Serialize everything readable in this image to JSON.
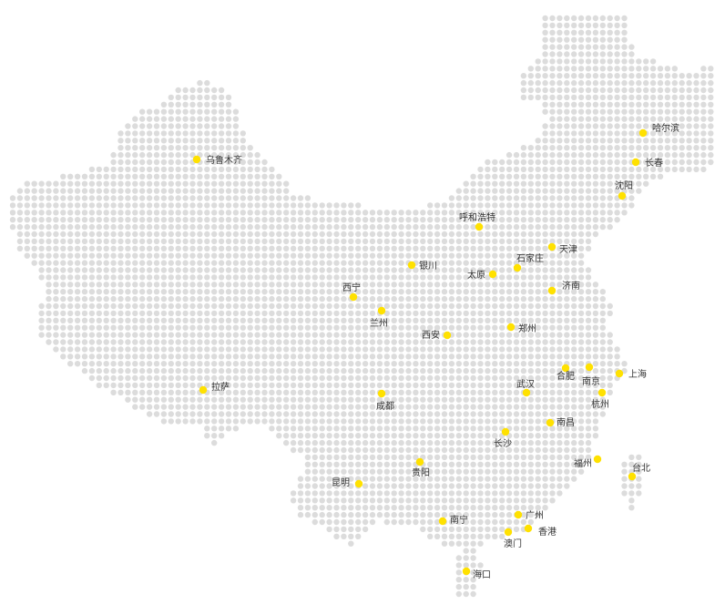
{
  "map": {
    "land_color": "#dcdcdc",
    "city_color": "#ffe100",
    "label_color": "#333333",
    "cities": [
      {
        "name": "乌鲁木齐"
      },
      {
        "name": "哈尔滨"
      },
      {
        "name": "长春"
      },
      {
        "name": "沈阳"
      },
      {
        "name": "呼和浩特"
      },
      {
        "name": "天津"
      },
      {
        "name": "银川"
      },
      {
        "name": "石家庄"
      },
      {
        "name": "太原"
      },
      {
        "name": "西宁"
      },
      {
        "name": "济南"
      },
      {
        "name": "兰州"
      },
      {
        "name": "郑州"
      },
      {
        "name": "西安"
      },
      {
        "name": "上海"
      },
      {
        "name": "合肥"
      },
      {
        "name": "南京"
      },
      {
        "name": "拉萨"
      },
      {
        "name": "武汉"
      },
      {
        "name": "杭州"
      },
      {
        "name": "成都"
      },
      {
        "name": "南昌"
      },
      {
        "name": "长沙"
      },
      {
        "name": "福州"
      },
      {
        "name": "台北"
      },
      {
        "name": "贵阳"
      },
      {
        "name": "昆明"
      },
      {
        "name": "广州"
      },
      {
        "name": "南宁"
      },
      {
        "name": "香港"
      },
      {
        "name": "澳门"
      },
      {
        "name": "海口"
      }
    ]
  }
}
